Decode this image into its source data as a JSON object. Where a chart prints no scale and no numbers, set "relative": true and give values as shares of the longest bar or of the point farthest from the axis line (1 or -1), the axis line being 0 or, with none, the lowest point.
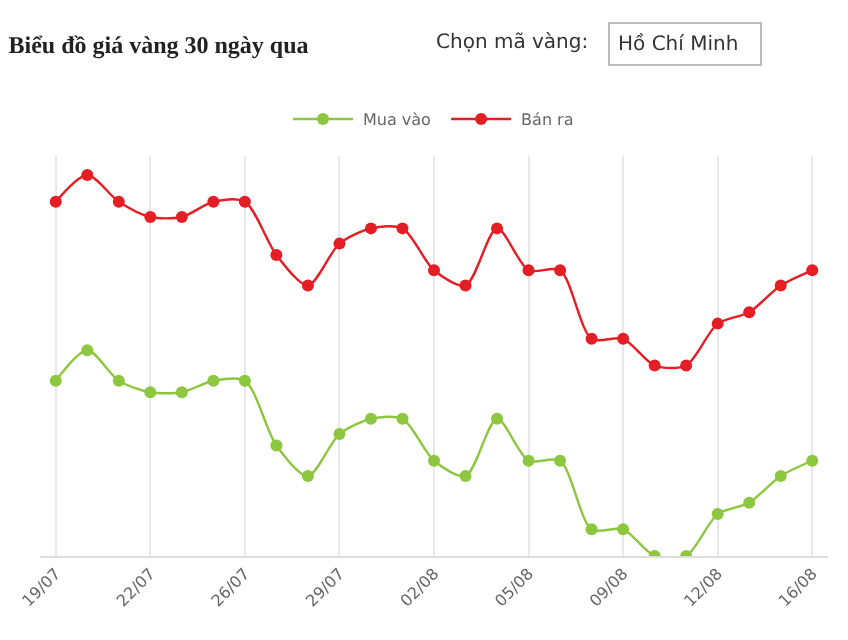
{
  "chart_data": {
    "type": "line",
    "title": "Biểu đồ giá vàng 30 ngày qua",
    "relative": true,
    "categories": [
      "19/07",
      null,
      null,
      "22/07",
      null,
      null,
      "26/07",
      null,
      null,
      "29/07",
      null,
      null,
      "02/08",
      null,
      null,
      "05/08",
      null,
      null,
      "09/08",
      null,
      null,
      "12/08",
      null,
      null,
      "16/08"
    ],
    "series": [
      {
        "name": "Mua vào",
        "color": "#8dc63f",
        "values": [
          0.46,
          0.54,
          0.46,
          0.43,
          0.43,
          0.46,
          0.46,
          0.29,
          0.21,
          0.32,
          0.36,
          0.36,
          0.25,
          0.21,
          0.36,
          0.25,
          0.25,
          0.07,
          0.07,
          0,
          0,
          0.11,
          0.14,
          0.21,
          0.25
        ]
      },
      {
        "name": "Bán ra",
        "color": "#e31e24",
        "values": [
          0.93,
          1,
          0.93,
          0.89,
          0.89,
          0.93,
          0.93,
          0.79,
          0.71,
          0.82,
          0.86,
          0.86,
          0.75,
          0.71,
          0.86,
          0.75,
          0.75,
          0.57,
          0.57,
          0.5,
          0.5,
          0.61,
          0.64,
          0.71,
          0.75
        ]
      }
    ],
    "annotations": [
      "Chọn mã vàng:",
      "Hồ Chí Minh"
    ],
    "grid": "x",
    "legend": "top",
    "marker": "circle",
    "line_style": "solid"
  }
}
